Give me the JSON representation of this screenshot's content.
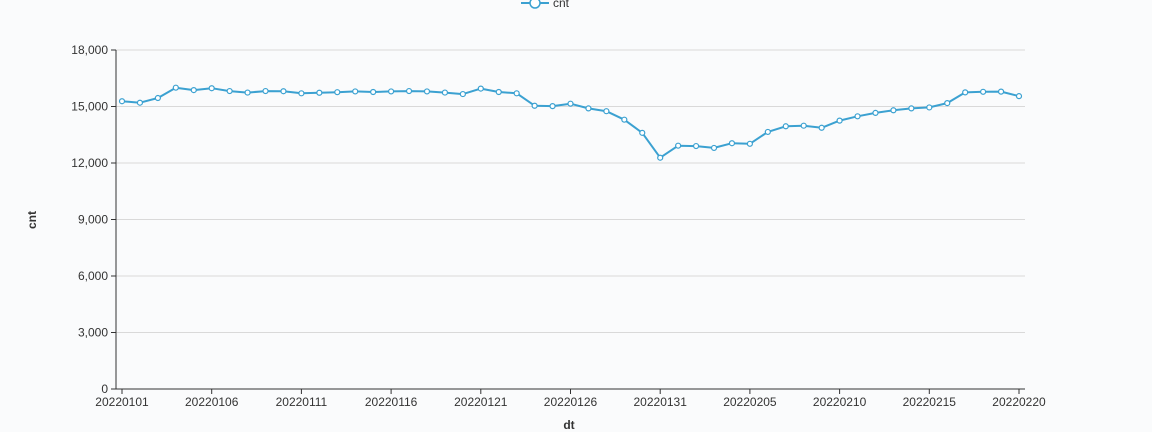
{
  "chart_data": {
    "type": "line",
    "xlabel": "dt",
    "ylabel": "cnt",
    "ylim": [
      0,
      18000
    ],
    "yticks": [
      0,
      3000,
      6000,
      9000,
      12000,
      15000,
      18000
    ],
    "ytick_labels": [
      "0",
      "3,000",
      "6,000",
      "9,000",
      "12,000",
      "15,000",
      "18,000"
    ],
    "xtick_labels": [
      "20220101",
      "20220106",
      "20220111",
      "20220116",
      "20220121",
      "20220126",
      "20220131",
      "20220205",
      "20220210",
      "20220215",
      "20220220"
    ],
    "grid": true,
    "legend_position": "top-center",
    "series": [
      {
        "name": "cnt",
        "color": "#3ba1d1",
        "x": [
          "20220101",
          "20220102",
          "20220103",
          "20220104",
          "20220105",
          "20220106",
          "20220107",
          "20220108",
          "20220109",
          "20220110",
          "20220111",
          "20220112",
          "20220113",
          "20220114",
          "20220115",
          "20220116",
          "20220117",
          "20220118",
          "20220119",
          "20220120",
          "20220121",
          "20220122",
          "20220123",
          "20220124",
          "20220125",
          "20220126",
          "20220127",
          "20220128",
          "20220129",
          "20220130",
          "20220131",
          "20220201",
          "20220202",
          "20220203",
          "20220204",
          "20220205",
          "20220206",
          "20220207",
          "20220208",
          "20220209",
          "20220210",
          "20220211",
          "20220212",
          "20220213",
          "20220214",
          "20220215",
          "20220216",
          "20220217",
          "20220218",
          "20220219",
          "20220220"
        ],
        "values": [
          15280,
          15200,
          15450,
          16000,
          15870,
          15970,
          15820,
          15740,
          15820,
          15810,
          15700,
          15730,
          15760,
          15800,
          15770,
          15800,
          15820,
          15800,
          15740,
          15660,
          15950,
          15770,
          15700,
          15040,
          15020,
          15150,
          14900,
          14750,
          14300,
          13600,
          12280,
          12920,
          12900,
          12800,
          13050,
          13020,
          13650,
          13950,
          13980,
          13870,
          14250,
          14480,
          14660,
          14800,
          14900,
          14950,
          15180,
          15750,
          15780,
          15790,
          15550
        ]
      }
    ]
  }
}
